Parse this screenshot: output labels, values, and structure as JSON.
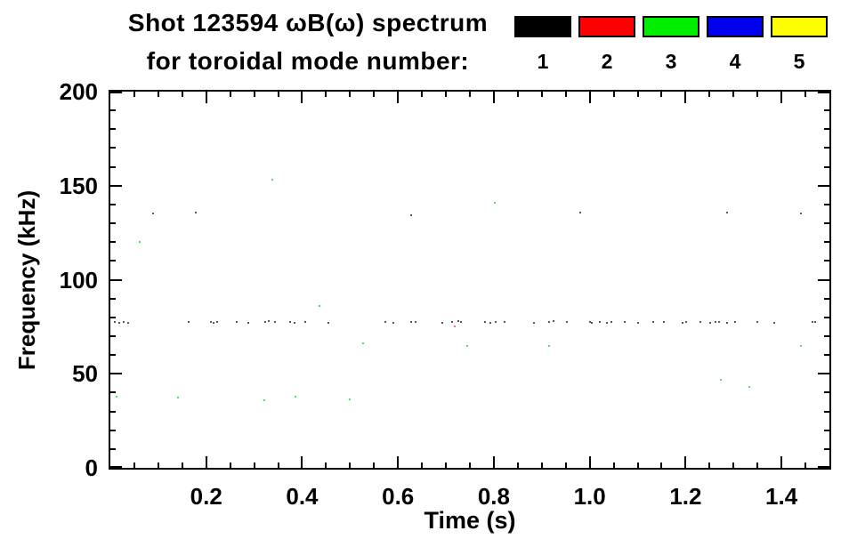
{
  "figure": {
    "title_line1": "Shot 123594 ωB(ω) spectrum",
    "title_line2": "for toroidal mode number:",
    "background": "#ffffff"
  },
  "legend": {
    "items": [
      {
        "label": "1",
        "color": "#000000"
      },
      {
        "label": "2",
        "color": "#ff0000"
      },
      {
        "label": "3",
        "color": "#00ee00"
      },
      {
        "label": "4",
        "color": "#0000ee"
      },
      {
        "label": "5",
        "color": "#ffff00"
      }
    ]
  },
  "chart_data": {
    "type": "scatter",
    "title": "Shot 123594 ωB(ω) spectrum for toroidal mode number: 1 2 3 4 5",
    "xlabel": "Time (s)",
    "ylabel": "Frequency (kHz)",
    "xlim": [
      0,
      1.5
    ],
    "ylim": [
      0,
      200
    ],
    "x_major_ticks": [
      0.2,
      0.4,
      0.6,
      0.8,
      1.0,
      1.2,
      1.4
    ],
    "x_tick_labels": [
      "0.2",
      "0.4",
      "0.6",
      "0.8",
      "1.0",
      "1.2",
      "1.4"
    ],
    "x_minor_step": 0.05,
    "y_major_ticks": [
      0,
      50,
      100,
      150,
      200
    ],
    "y_tick_labels": [
      "0",
      "50",
      "100",
      "150",
      "200"
    ],
    "y_minor_step": 10,
    "grid": false,
    "legend_position": "top-right",
    "series": [
      {
        "name": "n=1",
        "color": "#000000",
        "marker_px": 2,
        "points": [
          [
            0.01,
            77.5
          ],
          [
            0.018,
            77
          ],
          [
            0.028,
            77.5
          ],
          [
            0.037,
            77
          ],
          [
            0.163,
            77.5
          ],
          [
            0.209,
            77.5
          ],
          [
            0.215,
            77
          ],
          [
            0.222,
            77.5
          ],
          [
            0.264,
            77.5
          ],
          [
            0.288,
            77
          ],
          [
            0.323,
            77.5
          ],
          [
            0.33,
            78
          ],
          [
            0.344,
            77.5
          ],
          [
            0.375,
            77.5
          ],
          [
            0.384,
            77
          ],
          [
            0.406,
            77.5
          ],
          [
            0.454,
            77
          ],
          [
            0.573,
            77.5
          ],
          [
            0.591,
            77
          ],
          [
            0.628,
            77.5
          ],
          [
            0.637,
            77.5
          ],
          [
            0.693,
            77
          ],
          [
            0.713,
            77.5
          ],
          [
            0.726,
            78
          ],
          [
            0.732,
            77.5
          ],
          [
            0.781,
            77.5
          ],
          [
            0.792,
            77
          ],
          [
            0.803,
            77.5
          ],
          [
            0.822,
            77.5
          ],
          [
            0.883,
            77
          ],
          [
            0.916,
            77.5
          ],
          [
            0.925,
            78
          ],
          [
            0.953,
            77.5
          ],
          [
            1.0,
            77.5
          ],
          [
            1.005,
            77
          ],
          [
            1.021,
            77.5
          ],
          [
            1.036,
            77
          ],
          [
            1.045,
            77.5
          ],
          [
            1.073,
            77.5
          ],
          [
            1.101,
            77
          ],
          [
            1.132,
            77.5
          ],
          [
            1.155,
            77.5
          ],
          [
            1.193,
            77
          ],
          [
            1.202,
            77.5
          ],
          [
            1.23,
            77.5
          ],
          [
            1.252,
            77
          ],
          [
            1.262,
            77.5
          ],
          [
            1.27,
            77.5
          ],
          [
            1.286,
            77
          ],
          [
            1.304,
            77.5
          ],
          [
            1.35,
            77.5
          ],
          [
            1.385,
            77
          ],
          [
            1.465,
            77.5
          ],
          [
            1.47,
            77.5
          ],
          [
            0.089,
            135
          ],
          [
            0.178,
            135.5
          ],
          [
            0.627,
            134.5
          ],
          [
            0.981,
            135.5
          ],
          [
            1.286,
            135.5
          ],
          [
            1.44,
            135
          ]
        ]
      },
      {
        "name": "n=2",
        "color": "#ff2020",
        "marker_px": 2,
        "points": [
          [
            0.719,
            75
          ]
        ]
      },
      {
        "name": "n=3",
        "color": "#00cc00",
        "marker_px": 2,
        "points": [
          [
            0.061,
            120
          ],
          [
            0.338,
            153
          ],
          [
            0.436,
            86
          ],
          [
            0.527,
            66
          ],
          [
            0.744,
            65
          ],
          [
            0.802,
            141
          ],
          [
            0.916,
            65
          ],
          [
            1.441,
            65
          ],
          [
            1.273,
            47
          ],
          [
            1.332,
            43
          ],
          [
            0.013,
            38
          ],
          [
            0.142,
            37.5
          ],
          [
            0.321,
            36
          ],
          [
            0.386,
            38
          ],
          [
            0.499,
            36.5
          ]
        ]
      },
      {
        "name": "n=4",
        "color": "#0000ee",
        "marker_px": 2,
        "points": []
      },
      {
        "name": "n=5",
        "color": "#ffff00",
        "marker_px": 2,
        "points": []
      }
    ]
  }
}
